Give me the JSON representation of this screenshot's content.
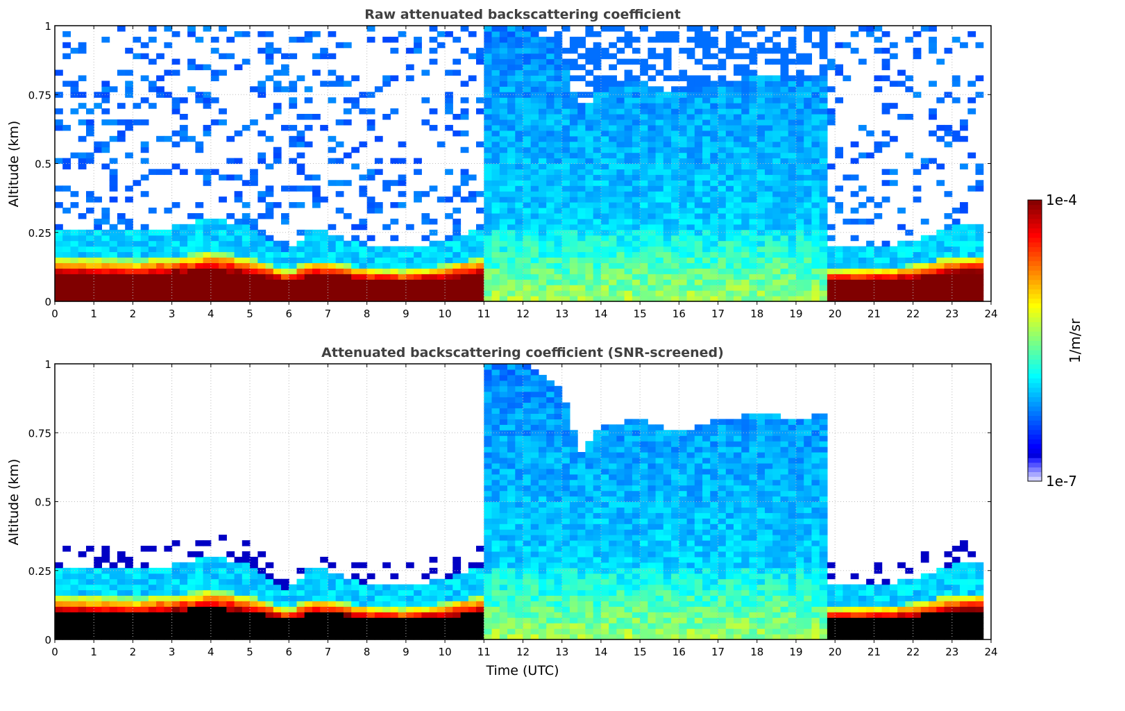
{
  "chart_data": [
    {
      "type": "heatmap",
      "title": "Raw attenuated backscattering coefficient",
      "xlabel": "",
      "ylabel": "Altitude (km)",
      "xlim": [
        0,
        24
      ],
      "ylim": [
        0,
        1
      ],
      "xticks": [
        "0",
        "1",
        "2",
        "3",
        "4",
        "5",
        "6",
        "7",
        "8",
        "9",
        "10",
        "11",
        "12",
        "13",
        "14",
        "15",
        "16",
        "17",
        "18",
        "19",
        "20",
        "21",
        "22",
        "23",
        "24"
      ],
      "yticks": [
        "0",
        "0.25",
        "0.5",
        "0.75",
        "1"
      ],
      "grid": true,
      "screened": false
    },
    {
      "type": "heatmap",
      "title": "Attenuated backscattering coefficient (SNR-screened)",
      "xlabel": "Time (UTC)",
      "ylabel": "Altitude (km)",
      "xlim": [
        0,
        24
      ],
      "ylim": [
        0,
        1
      ],
      "xticks": [
        "0",
        "1",
        "2",
        "3",
        "4",
        "5",
        "6",
        "7",
        "8",
        "9",
        "10",
        "11",
        "12",
        "13",
        "14",
        "15",
        "16",
        "17",
        "18",
        "19",
        "20",
        "21",
        "22",
        "23",
        "24"
      ],
      "yticks": [
        "0",
        "0.25",
        "0.5",
        "0.75",
        "1"
      ],
      "grid": true,
      "screened": true
    }
  ],
  "profile": {
    "time_utc": [
      0,
      1,
      2,
      3,
      4,
      5,
      6,
      6.5,
      7,
      8,
      9,
      10,
      10.9,
      11.05,
      12,
      13,
      13.5,
      14,
      15,
      16,
      17,
      18,
      19,
      19.8,
      19.9,
      21,
      22,
      23,
      23.8
    ],
    "layer_top_km": [
      0.26,
      0.26,
      0.25,
      0.27,
      0.3,
      0.27,
      0.18,
      0.25,
      0.25,
      0.2,
      0.19,
      0.22,
      0.27,
      1.0,
      1.0,
      0.9,
      0.68,
      0.78,
      0.8,
      0.75,
      0.8,
      0.82,
      0.8,
      0.82,
      0.2,
      0.2,
      0.22,
      0.27,
      0.28
    ],
    "regime": [
      "aerosol",
      "aerosol",
      "aerosol",
      "aerosol",
      "aerosol",
      "aerosol",
      "aerosol",
      "aerosol",
      "aerosol",
      "aerosol",
      "aerosol",
      "aerosol",
      "aerosol",
      "fog",
      "fog",
      "fog",
      "fog",
      "fog",
      "fog",
      "fog",
      "fog",
      "fog",
      "fog",
      "fog",
      "aerosol",
      "aerosol",
      "aerosol",
      "aerosol",
      "aerosol"
    ],
    "data_end_utc": 23.8
  },
  "colorbar": {
    "label": "1/m/sr",
    "max_label": "1e-4",
    "min_label": "1e-7",
    "log_range": [
      -7,
      -4
    ],
    "colormap": "jet"
  }
}
